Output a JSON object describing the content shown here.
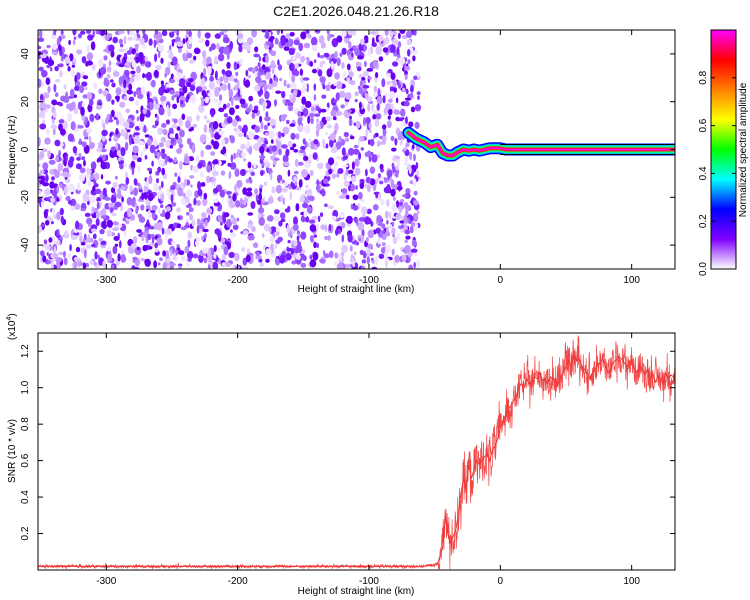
{
  "title": "C2E1.2026.048.21.26.R18",
  "chart_data": [
    {
      "type": "heatmap",
      "name": "spectrogram",
      "xlabel": "Height of straight line (km)",
      "ylabel": "Frequency (Hz)",
      "xlim": [
        -352,
        133
      ],
      "ylim": [
        -50,
        50
      ],
      "xticks": [
        -300,
        -200,
        -100,
        0,
        100
      ],
      "xtick_labels": [
        "-300",
        "-200",
        "-100",
        "0",
        "100"
      ],
      "yticks": [
        -40,
        -20,
        0,
        20,
        40
      ],
      "ytick_labels": [
        "-40",
        "-20",
        "0",
        "20",
        "40"
      ],
      "noise_region_x": [
        -352,
        -62
      ],
      "signal_track": {
        "x": [
          -70,
          -64,
          -58,
          -53,
          -48,
          -44,
          -40,
          -36,
          -32,
          -28,
          -24,
          -20,
          -16,
          -12,
          -8,
          -4,
          0,
          4,
          10,
          20,
          40,
          60,
          80,
          100,
          120,
          133
        ],
        "y": [
          7,
          4.5,
          3,
          1,
          2,
          -1.5,
          -2.5,
          -2.5,
          -1,
          0,
          -0.5,
          0,
          -0.5,
          0,
          0.5,
          0.5,
          0.5,
          0,
          0,
          0,
          0,
          0,
          0,
          0,
          0,
          0
        ]
      },
      "colorbar": {
        "label": "Normalized spectral amplitude",
        "range": [
          0,
          1
        ],
        "ticks": [
          0.0,
          0.2,
          0.4,
          0.6,
          0.8
        ],
        "tick_labels": [
          "0.0",
          "0.2",
          "0.4",
          "0.6",
          "0.8"
        ],
        "colors": [
          "#ffffff",
          "#8000ff",
          "#0000ff",
          "#00ffff",
          "#00ff00",
          "#ffff00",
          "#ff8000",
          "#ff0000",
          "#ff00ff"
        ]
      }
    },
    {
      "type": "line",
      "name": "snr",
      "xlabel": "Height of straight line (km)",
      "ylabel": "SNR (10 * v/v)",
      "yscale_label": "(x10",
      "yscale_exp": "4",
      "xlim": [
        -352,
        133
      ],
      "ylim": [
        0,
        1.3
      ],
      "xticks": [
        -300,
        -200,
        -100,
        0,
        100
      ],
      "xtick_labels": [
        "-300",
        "-200",
        "-100",
        "0",
        "100"
      ],
      "yticks": [
        0.2,
        0.4,
        0.6,
        0.8,
        1.0,
        1.2
      ],
      "ytick_labels": [
        "0.2",
        "0.4",
        "0.6",
        "0.8",
        "1.0",
        "1.2"
      ],
      "color": "#ee3333",
      "series": {
        "x": [
          -352,
          -300,
          -250,
          -200,
          -150,
          -100,
          -60,
          -48,
          -44,
          -42,
          -40,
          -38,
          -36,
          -34,
          -32,
          -30,
          -28,
          -26,
          -24,
          -22,
          -20,
          -18,
          -16,
          -14,
          -12,
          -10,
          -8,
          -6,
          -4,
          -2,
          0,
          2,
          4,
          6,
          8,
          10,
          12,
          14,
          16,
          18,
          20,
          22,
          24,
          26,
          28,
          30,
          32,
          34,
          36,
          38,
          40,
          42,
          44,
          46,
          48,
          50,
          52,
          54,
          56,
          58,
          60,
          62,
          64,
          66,
          68,
          70,
          72,
          74,
          76,
          78,
          80,
          82,
          84,
          86,
          88,
          90,
          92,
          94,
          96,
          98,
          100,
          102,
          104,
          106,
          108,
          110,
          112,
          114,
          116,
          118,
          120,
          122,
          124,
          126,
          128,
          130,
          133
        ],
        "y": [
          0.02,
          0.02,
          0.02,
          0.02,
          0.02,
          0.02,
          0.02,
          0.03,
          0.12,
          0.3,
          0.2,
          0.15,
          0.18,
          0.22,
          0.3,
          0.42,
          0.5,
          0.45,
          0.58,
          0.5,
          0.55,
          0.6,
          0.58,
          0.6,
          0.62,
          0.64,
          0.6,
          0.66,
          0.68,
          0.72,
          0.78,
          0.82,
          0.85,
          0.88,
          0.9,
          0.93,
          0.95,
          1.0,
          1.02,
          1.0,
          1.05,
          1.02,
          1.03,
          1.06,
          1.05,
          1.08,
          1.04,
          1.05,
          1.02,
          1.06,
          1.05,
          1.04,
          1.02,
          1.06,
          1.08,
          1.12,
          1.15,
          1.12,
          1.18,
          1.15,
          1.16,
          1.12,
          1.1,
          1.08,
          1.05,
          1.08,
          1.1,
          1.12,
          1.14,
          1.16,
          1.12,
          1.08,
          1.1,
          1.14,
          1.15,
          1.17,
          1.16,
          1.14,
          1.12,
          1.13,
          1.15,
          1.1,
          1.08,
          1.12,
          1.1,
          1.07,
          1.1,
          1.05,
          1.08,
          1.03,
          1.06,
          1.05,
          1.02,
          1.08,
          1.05,
          1.07,
          1.05
        ]
      }
    }
  ]
}
